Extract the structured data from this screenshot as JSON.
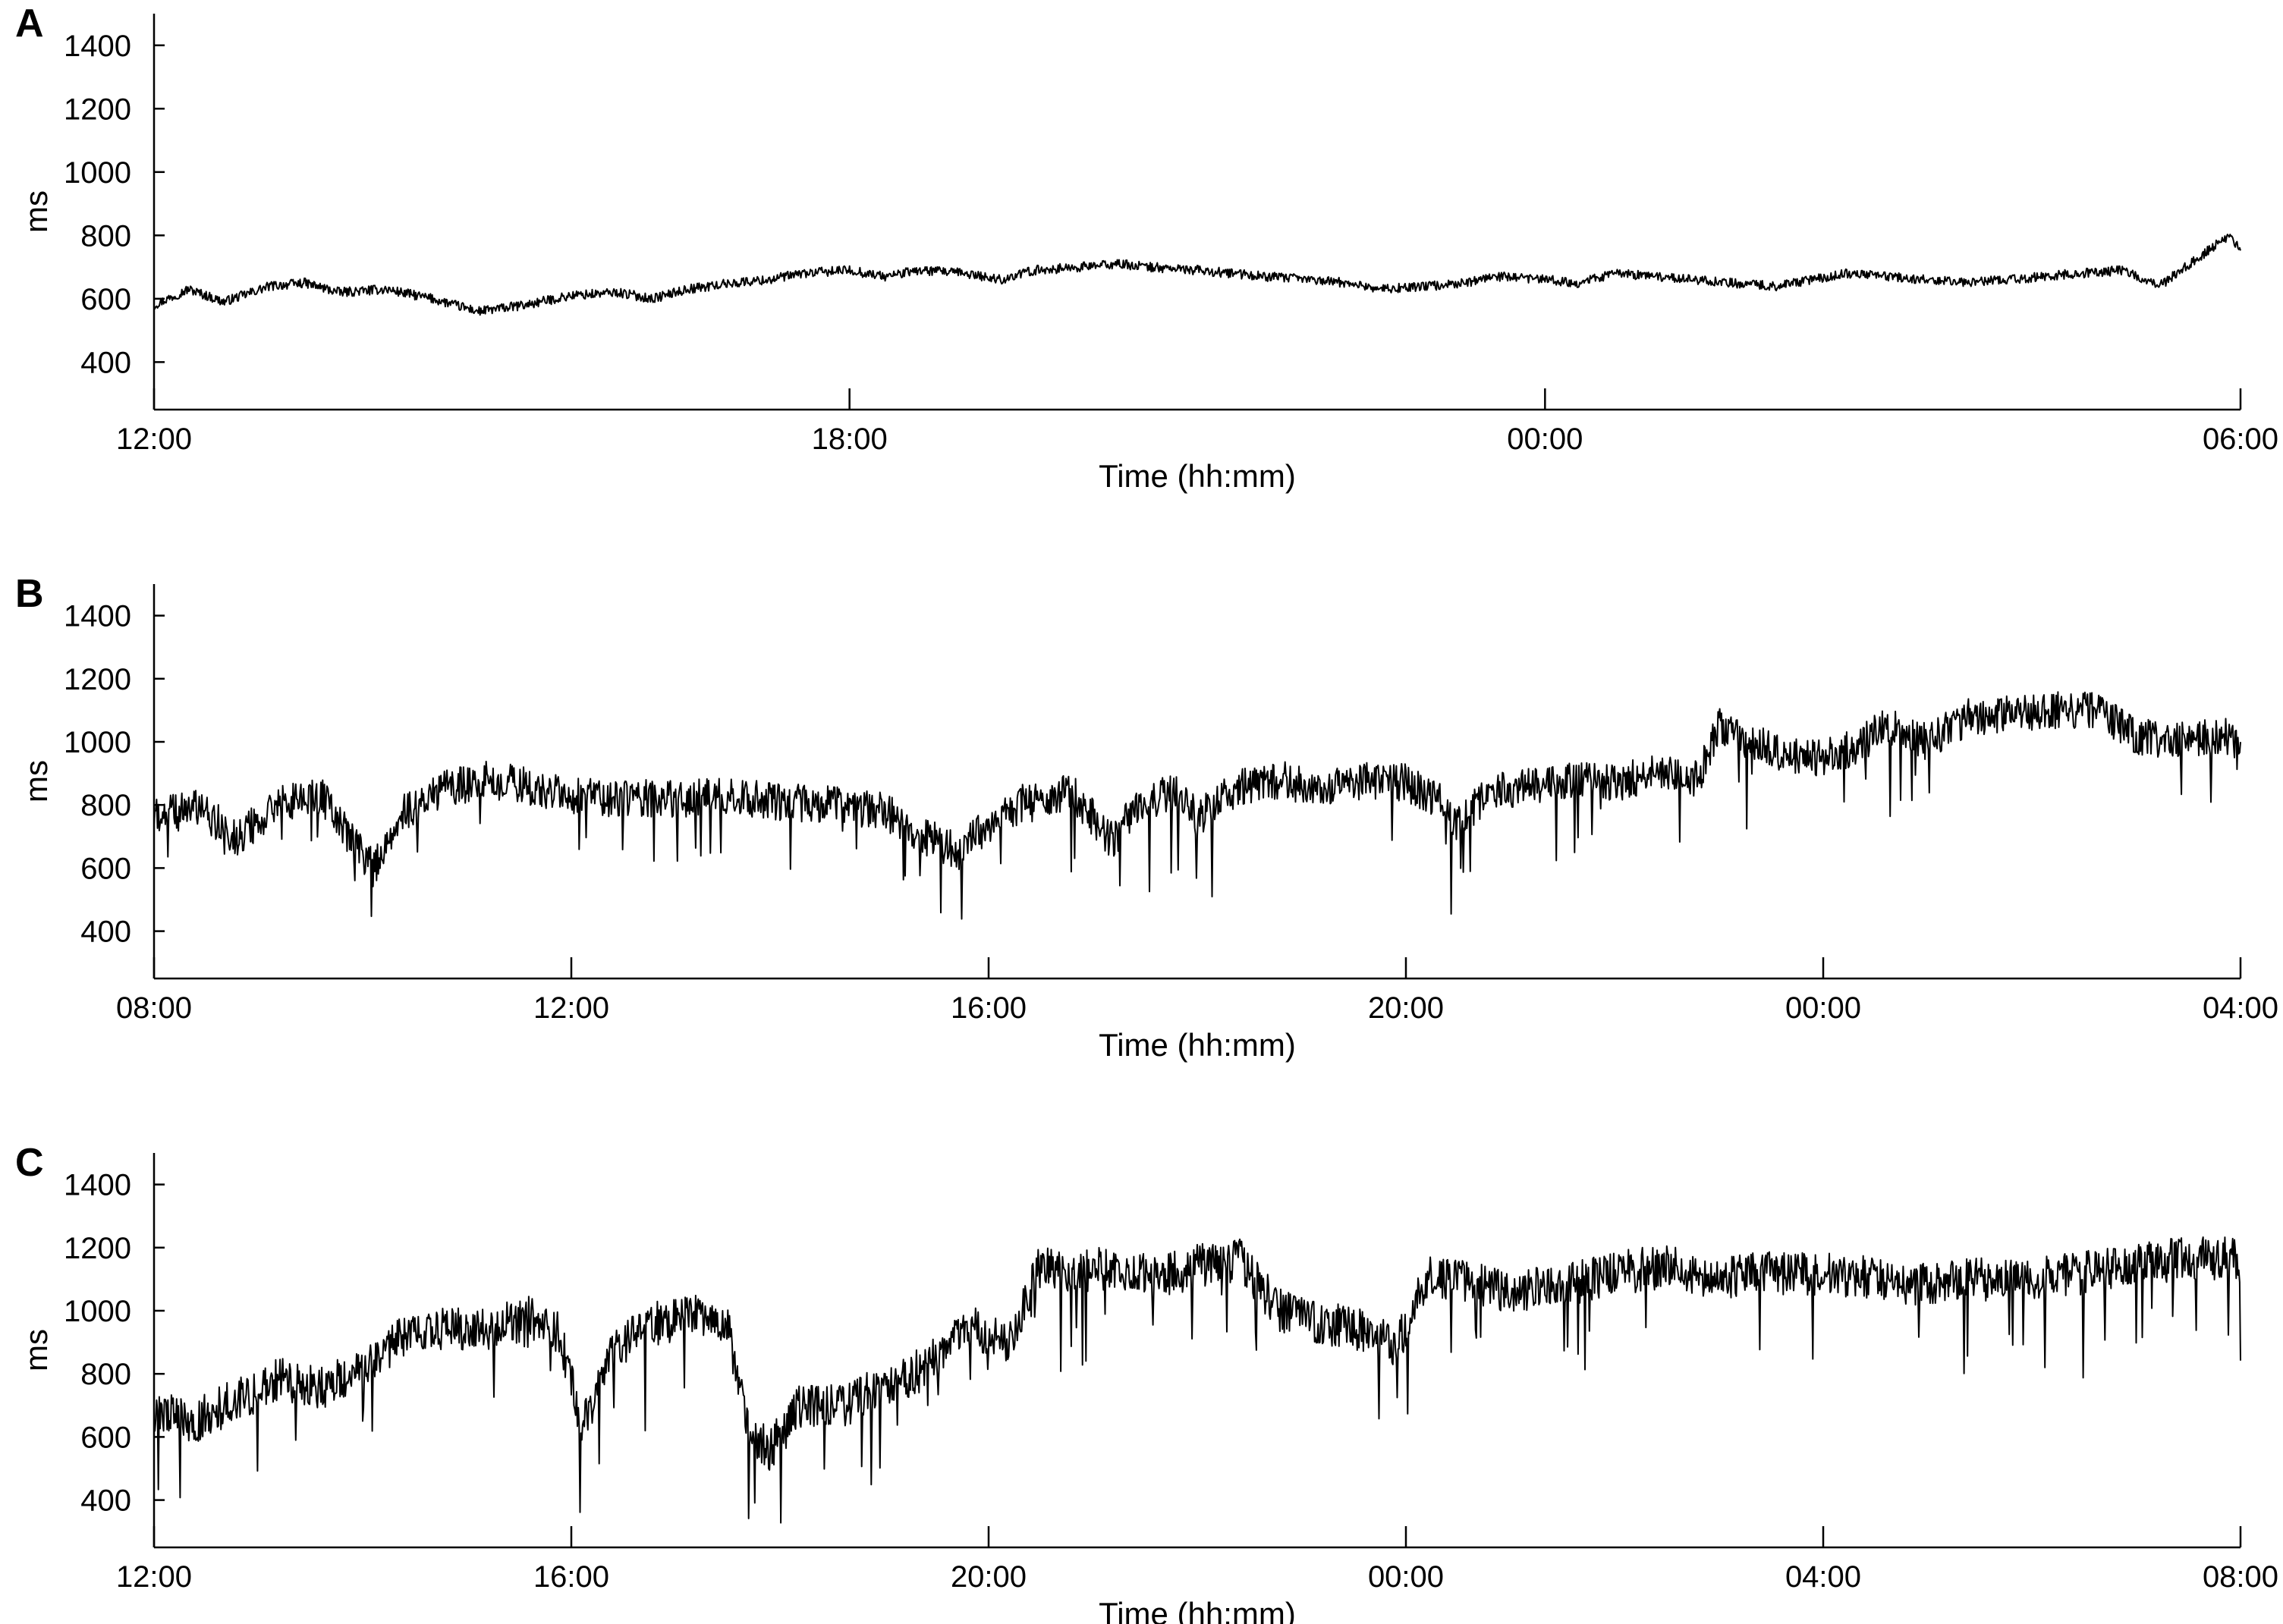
{
  "chart_data": [
    {
      "type": "line",
      "panel_label": "A",
      "xlabel": "Time (hh:mm)",
      "ylabel": "ms",
      "ylim": [
        250,
        1500
      ],
      "yticks": [
        400,
        600,
        800,
        1000,
        1200,
        1400
      ],
      "xlim_hours": [
        12,
        30
      ],
      "xticks": [
        {
          "value": 12,
          "label": "12:00"
        },
        {
          "value": 18,
          "label": "18:00"
        },
        {
          "value": 24,
          "label": "00:00"
        },
        {
          "value": 30,
          "label": "06:00"
        }
      ],
      "grid": false,
      "line_color": "#000000",
      "series": [
        {
          "x_hours": [
            12.0,
            12.3,
            12.6,
            13.0,
            13.3,
            13.6,
            14.0,
            14.4,
            14.8,
            15.2,
            15.6,
            16.0,
            16.3,
            16.6,
            17.0,
            17.3,
            17.6,
            18.0,
            18.3,
            18.6,
            19.0,
            19.3,
            19.6,
            20.0,
            20.3,
            20.6,
            21.0,
            21.3,
            21.6,
            22.0,
            22.3,
            22.6,
            23.0,
            23.3,
            23.6,
            24.0,
            24.3,
            24.6,
            25.0,
            25.3,
            25.6,
            26.0,
            26.3,
            26.6,
            27.0,
            27.3,
            27.6,
            28.0,
            28.3,
            28.6,
            29.0,
            29.3,
            29.6,
            29.9,
            30.0
          ],
          "values": [
            580,
            630,
            590,
            640,
            650,
            620,
            630,
            600,
            560,
            580,
            610,
            620,
            600,
            630,
            650,
            660,
            680,
            690,
            670,
            690,
            680,
            660,
            690,
            700,
            710,
            700,
            690,
            680,
            670,
            660,
            650,
            630,
            640,
            650,
            670,
            660,
            650,
            680,
            670,
            660,
            650,
            640,
            660,
            680,
            670,
            660,
            650,
            660,
            670,
            680,
            690,
            640,
            720,
            800,
            760
          ],
          "noise": 15
        }
      ]
    },
    {
      "type": "line",
      "panel_label": "B",
      "xlabel": "Time (hh:mm)",
      "ylabel": "ms",
      "ylim": [
        250,
        1500
      ],
      "yticks": [
        400,
        600,
        800,
        1000,
        1200,
        1400
      ],
      "xlim_hours": [
        8,
        28
      ],
      "xticks": [
        {
          "value": 8,
          "label": "08:00"
        },
        {
          "value": 12,
          "label": "12:00"
        },
        {
          "value": 16,
          "label": "16:00"
        },
        {
          "value": 20,
          "label": "20:00"
        },
        {
          "value": 24,
          "label": "00:00"
        },
        {
          "value": 28,
          "label": "04:00"
        }
      ],
      "grid": false,
      "line_color": "#000000",
      "series": [
        {
          "x_hours": [
            8.0,
            8.4,
            8.8,
            9.2,
            9.6,
            9.9,
            10.1,
            10.4,
            10.8,
            11.2,
            11.6,
            12.0,
            12.5,
            13.0,
            13.5,
            14.0,
            14.5,
            15.0,
            15.4,
            15.7,
            16.0,
            16.4,
            16.8,
            17.0,
            17.2,
            17.4,
            17.8,
            18.0,
            18.4,
            18.8,
            19.2,
            19.6,
            20.0,
            20.3,
            20.5,
            20.8,
            21.2,
            21.6,
            22.0,
            22.4,
            22.8,
            23.0,
            23.3,
            23.6,
            24.0,
            24.3,
            24.6,
            25.0,
            25.4,
            25.8,
            26.2,
            26.6,
            27.0,
            27.4,
            27.8,
            28.0
          ],
          "values": [
            760,
            790,
            700,
            800,
            830,
            680,
            600,
            780,
            850,
            880,
            860,
            830,
            820,
            820,
            830,
            810,
            800,
            780,
            700,
            650,
            740,
            820,
            840,
            760,
            680,
            800,
            840,
            760,
            860,
            880,
            850,
            880,
            870,
            820,
            740,
            840,
            860,
            880,
            870,
            900,
            880,
            1050,
            1000,
            960,
            950,
            980,
            1050,
            1000,
            1080,
            1090,
            1100,
            1100,
            1020,
            1000,
            1020,
            1000
          ],
          "noise": 60
        }
      ]
    },
    {
      "type": "line",
      "panel_label": "C",
      "xlabel": "Time (hh:mm)",
      "ylabel": "ms",
      "ylim": [
        250,
        1500
      ],
      "yticks": [
        400,
        600,
        800,
        1000,
        1200,
        1400
      ],
      "xlim_hours": [
        12,
        32
      ],
      "xticks": [
        {
          "value": 12,
          "label": "12:00"
        },
        {
          "value": 16,
          "label": "16:00"
        },
        {
          "value": 20,
          "label": "20:00"
        },
        {
          "value": 24,
          "label": "00:00"
        },
        {
          "value": 28,
          "label": "04:00"
        },
        {
          "value": 32,
          "label": "08:00"
        }
      ],
      "grid": false,
      "line_color": "#000000",
      "series": [
        {
          "x_hours": [
            12.0,
            12.4,
            12.8,
            13.2,
            13.6,
            14.0,
            14.4,
            14.8,
            15.2,
            15.6,
            15.9,
            16.1,
            16.4,
            16.8,
            17.2,
            17.5,
            17.7,
            17.9,
            18.2,
            18.6,
            19.0,
            19.4,
            19.8,
            20.2,
            20.5,
            20.8,
            21.2,
            21.6,
            22.0,
            22.4,
            22.8,
            23.2,
            23.6,
            23.9,
            24.2,
            24.5,
            25.0,
            25.5,
            26.0,
            26.5,
            27.0,
            27.5,
            28.0,
            28.5,
            29.0,
            29.5,
            30.0,
            30.5,
            31.0,
            31.5,
            32.0
          ],
          "values": [
            680,
            650,
            720,
            780,
            760,
            800,
            920,
            950,
            940,
            980,
            920,
            620,
            880,
            960,
            980,
            960,
            600,
            560,
            700,
            700,
            760,
            820,
            950,
            900,
            1150,
            1120,
            1140,
            1100,
            1140,
            1160,
            1000,
            960,
            940,
            880,
            1100,
            1100,
            1060,
            1080,
            1120,
            1140,
            1100,
            1120,
            1120,
            1100,
            1080,
            1100,
            1100,
            1120,
            1140,
            1170,
            1160
          ],
          "noise": 70
        }
      ]
    }
  ]
}
